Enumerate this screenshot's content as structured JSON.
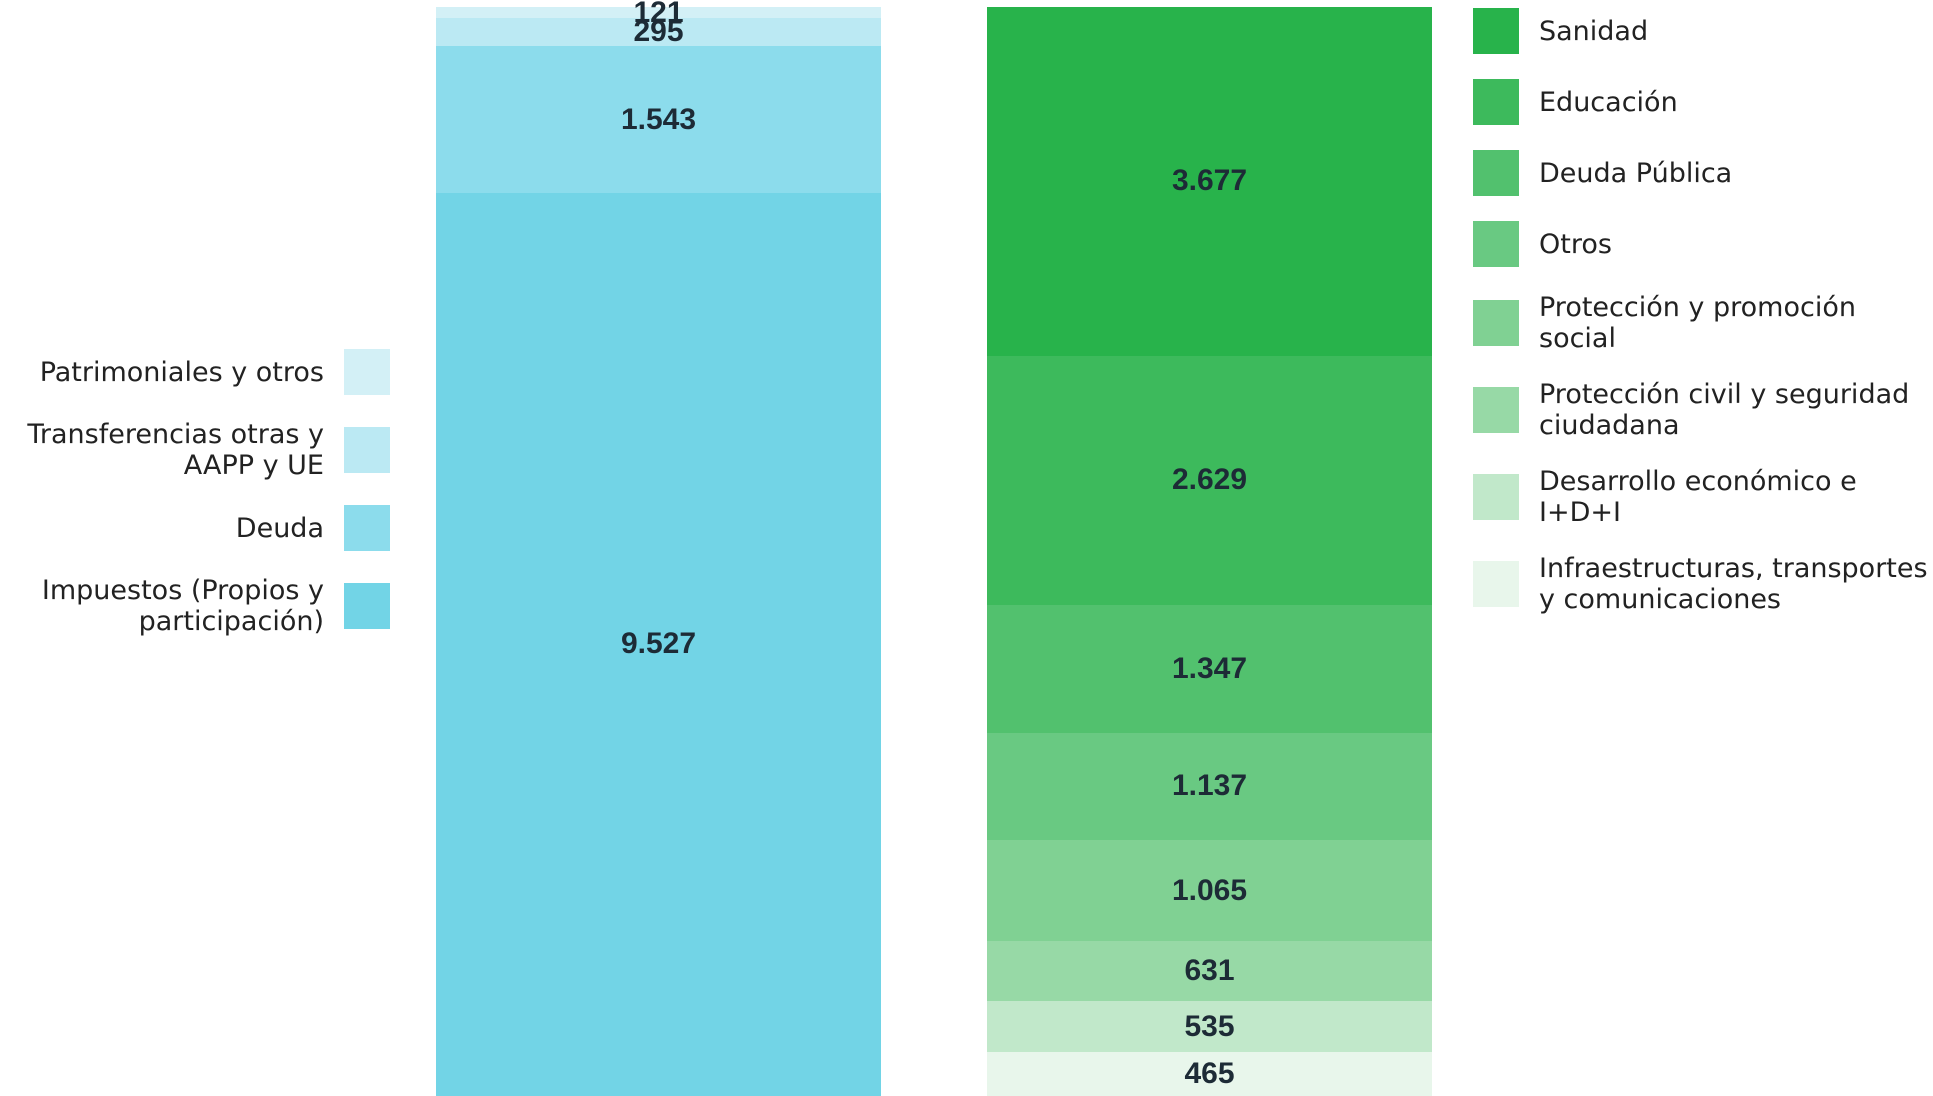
{
  "chart_data": [
    {
      "type": "stacked_bar",
      "legend": "left",
      "series": [
        {
          "name": "Impuestos (Propios y participación)",
          "color": "#72d4e6",
          "values": [
            9527
          ],
          "value_labels": [
            "9.527"
          ]
        },
        {
          "name": "Deuda",
          "color": "#8cdcec",
          "values": [
            1543
          ],
          "value_labels": [
            "1.543"
          ]
        },
        {
          "name": "Transferencias otras y AAPP y UE",
          "color": "#bbe9f3",
          "values": [
            295
          ]
        },
        {
          "name": "Patrimoniales y otros",
          "color": "#d3f0f6",
          "values": [
            121
          ]
        }
      ]
    },
    {
      "type": "stacked_bar",
      "legend": "right",
      "series": [
        {
          "name": "Infraestructuras, transportes y comunicaciones",
          "color": "#e8f6eb",
          "values": [
            465
          ]
        },
        {
          "name": "Desarrollo económico e I+D+I",
          "color": "#c1e8ca",
          "values": [
            535
          ]
        },
        {
          "name": "Protección civil y seguridad ciudadana",
          "color": "#97d9a6",
          "values": [
            631
          ]
        },
        {
          "name": "Protección y promoción social",
          "color": "#80d193",
          "values": [
            1065
          ],
          "value_labels": [
            "1.065"
          ]
        },
        {
          "name": "Otros",
          "color": "#69c982",
          "values": [
            1137
          ],
          "value_labels": [
            "1.137"
          ]
        },
        {
          "name": "Deuda Pública",
          "color": "#52c16e",
          "values": [
            1347
          ],
          "value_labels": [
            "1.347"
          ]
        },
        {
          "name": "Educación",
          "color": "#3dba5c",
          "values": [
            2629
          ],
          "value_labels": [
            "2.629"
          ]
        },
        {
          "name": "Sanidad",
          "color": "#28b34b",
          "values": [
            3677
          ],
          "value_labels": [
            "3.677"
          ]
        }
      ]
    }
  ]
}
